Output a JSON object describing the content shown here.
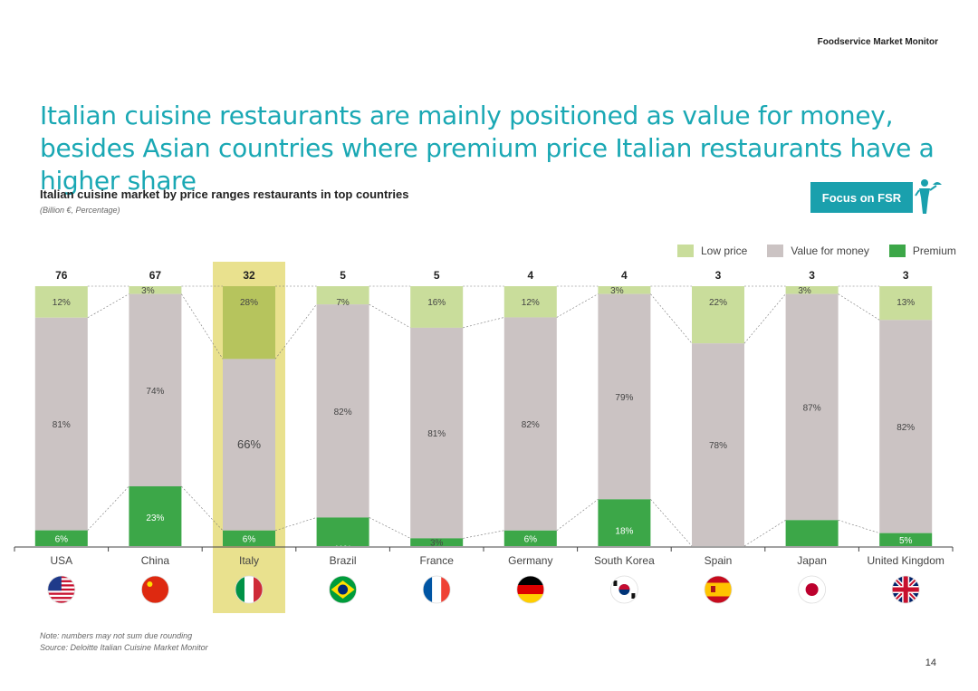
{
  "header": {
    "brand": "Foodservice Market Monitor"
  },
  "title": "Italian cuisine restaurants are mainly positioned as value for money, besides Asian countries where premium price Italian restaurants have a higher share",
  "badge": {
    "label": "Focus on FSR",
    "icon": "waiter-icon"
  },
  "colors": {
    "accent": "#1aa8b4",
    "low_price": "#c9dd9b",
    "value_for_money": "#cbc3c3",
    "premium": "#3ca748",
    "highlight": "#e9e18e",
    "italy_low_price": "#b6c45d"
  },
  "chart_data": {
    "type": "bar",
    "stacked": true,
    "normalized": true,
    "title": "Italian cuisine market by price ranges restaurants in top countries",
    "subtitle": "(Billion €, Percentage)",
    "legend_position": "top-right",
    "highlighted_category": "Italy",
    "categories": [
      "USA",
      "China",
      "Italy",
      "Brazil",
      "France",
      "Germany",
      "South Korea",
      "Spain",
      "Japan",
      "United Kingdom"
    ],
    "totals": [
      76,
      67,
      32,
      5,
      5,
      4,
      4,
      3,
      3,
      3
    ],
    "series": [
      {
        "name": "Low price",
        "values": [
          12,
          3,
          28,
          7,
          16,
          12,
          3,
          22,
          3,
          13
        ]
      },
      {
        "name": "Value for money",
        "values": [
          81,
          74,
          66,
          82,
          81,
          82,
          79,
          78,
          87,
          82
        ]
      },
      {
        "name": "Premium",
        "values": [
          6,
          23,
          6,
          11,
          3,
          6,
          18,
          0,
          10,
          5
        ]
      }
    ],
    "value_labels": [
      [
        "12%",
        "81%",
        "6%"
      ],
      [
        "3%",
        "74%",
        "23%"
      ],
      [
        "28%",
        "66%",
        "6%"
      ],
      [
        "7%",
        "82%",
        "11%"
      ],
      [
        "16%",
        "81%",
        "3%"
      ],
      [
        "12%",
        "82%",
        "6%"
      ],
      [
        "3%",
        "79%",
        "18%"
      ],
      [
        "22%",
        "78%",
        ""
      ],
      [
        "3%",
        "87%",
        "10%"
      ],
      [
        "13%",
        "82%",
        "5%"
      ]
    ],
    "flags": [
      "flag-usa-icon",
      "flag-china-icon",
      "flag-italy-icon",
      "flag-brazil-icon",
      "flag-france-icon",
      "flag-germany-icon",
      "flag-south-korea-icon",
      "flag-spain-icon",
      "flag-japan-icon",
      "flag-uk-icon"
    ]
  },
  "footer": {
    "note": "Note: numbers may not sum due rounding",
    "source": "Source: Deloitte Italian Cuisine Market Monitor",
    "page": "14"
  }
}
